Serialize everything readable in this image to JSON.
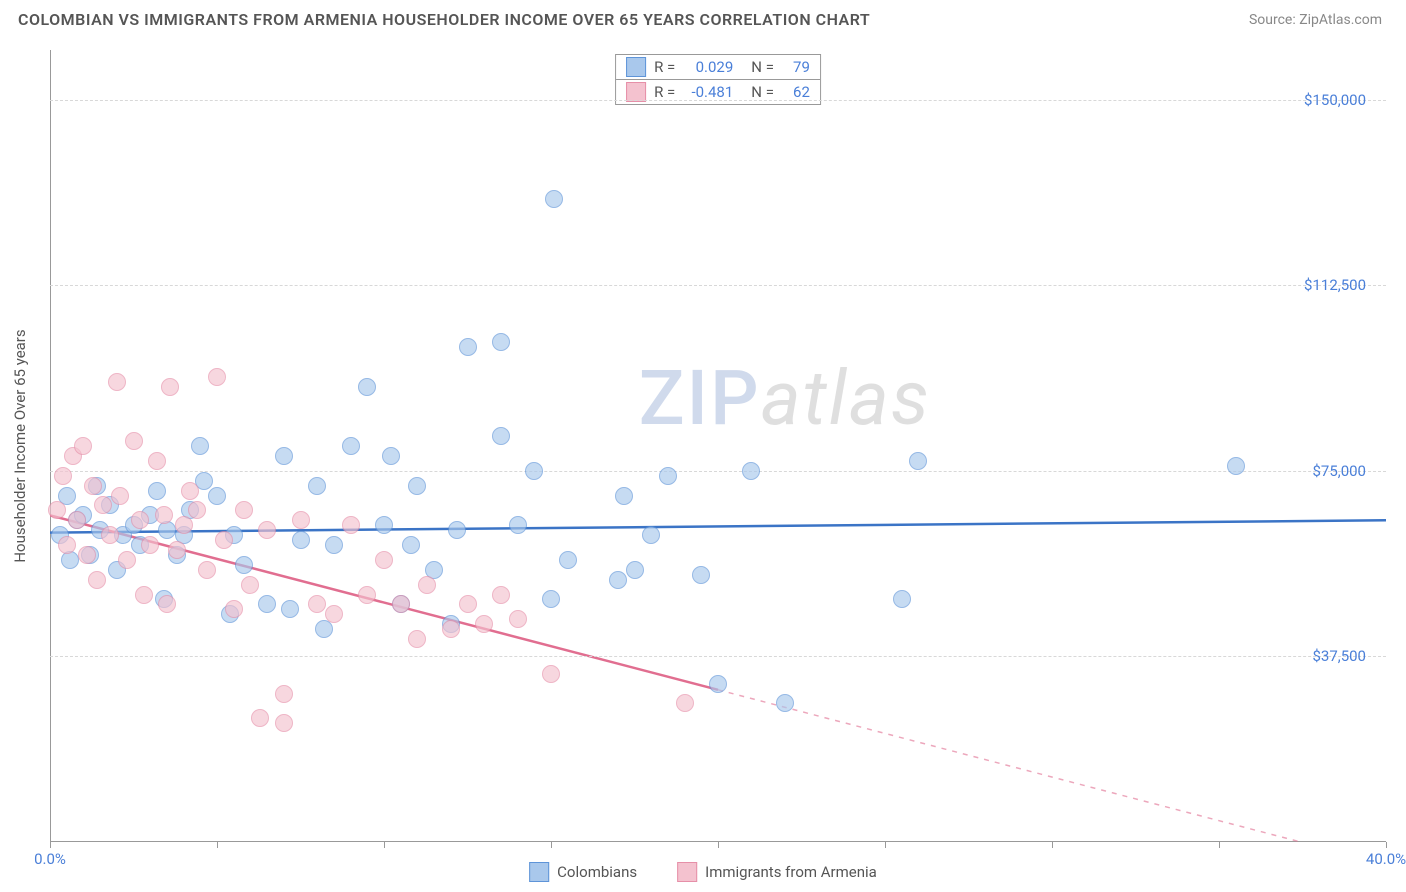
{
  "header": {
    "title": "COLOMBIAN VS IMMIGRANTS FROM ARMENIA HOUSEHOLDER INCOME OVER 65 YEARS CORRELATION CHART",
    "source": "Source: ZipAtlas.com"
  },
  "chart": {
    "type": "scatter",
    "y_label": "Householder Income Over 65 years",
    "background_color": "#ffffff",
    "grid_color": "#d8d8d8",
    "axis_color": "#999999",
    "text_color": "#555555",
    "value_color": "#4a7fd8",
    "xlim": [
      0,
      40
    ],
    "ylim": [
      0,
      160000
    ],
    "x_ticks": [
      0,
      5,
      10,
      15,
      20,
      25,
      30,
      35,
      40
    ],
    "x_tick_labels": {
      "0": "0.0%",
      "40": "40.0%"
    },
    "y_ticks": [
      37500,
      75000,
      112500,
      150000
    ],
    "y_tick_labels": {
      "37500": "$37,500",
      "75000": "$75,000",
      "112500": "$112,500",
      "150000": "$150,000"
    },
    "watermark": {
      "part1": "ZIP",
      "part2": "atlas"
    },
    "series": [
      {
        "name": "Colombians",
        "fill_color": "#a9c8ec",
        "stroke_color": "#5e94d8",
        "line_color": "#3b74c6",
        "line_width": 2.5,
        "R": "0.029",
        "N": "79",
        "trend": {
          "x1": 0,
          "y1": 62500,
          "x2": 40,
          "y2": 65000,
          "solid_to_x": 40
        },
        "points": [
          [
            0.3,
            62000
          ],
          [
            0.5,
            70000
          ],
          [
            0.6,
            57000
          ],
          [
            0.8,
            65000
          ],
          [
            1.0,
            66000
          ],
          [
            1.2,
            58000
          ],
          [
            1.4,
            72000
          ],
          [
            1.5,
            63000
          ],
          [
            1.8,
            68000
          ],
          [
            2.0,
            55000
          ],
          [
            2.2,
            62000
          ],
          [
            2.5,
            64000
          ],
          [
            2.7,
            60000
          ],
          [
            3.0,
            66000
          ],
          [
            3.2,
            71000
          ],
          [
            3.4,
            49000
          ],
          [
            3.5,
            63000
          ],
          [
            3.8,
            58000
          ],
          [
            4.0,
            62000
          ],
          [
            4.2,
            67000
          ],
          [
            4.5,
            80000
          ],
          [
            4.6,
            73000
          ],
          [
            5.0,
            70000
          ],
          [
            5.4,
            46000
          ],
          [
            5.5,
            62000
          ],
          [
            5.8,
            56000
          ],
          [
            6.5,
            48000
          ],
          [
            7.0,
            78000
          ],
          [
            7.2,
            47000
          ],
          [
            7.5,
            61000
          ],
          [
            8.0,
            72000
          ],
          [
            8.2,
            43000
          ],
          [
            8.5,
            60000
          ],
          [
            9.0,
            80000
          ],
          [
            9.5,
            92000
          ],
          [
            10.0,
            64000
          ],
          [
            10.2,
            78000
          ],
          [
            10.5,
            48000
          ],
          [
            10.8,
            60000
          ],
          [
            11.0,
            72000
          ],
          [
            11.5,
            55000
          ],
          [
            12.0,
            44000
          ],
          [
            12.2,
            63000
          ],
          [
            12.5,
            100000
          ],
          [
            13.5,
            82000
          ],
          [
            13.5,
            101000
          ],
          [
            14.0,
            64000
          ],
          [
            14.5,
            75000
          ],
          [
            15.1,
            130000
          ],
          [
            15.0,
            49000
          ],
          [
            15.5,
            57000
          ],
          [
            17.0,
            53000
          ],
          [
            17.2,
            70000
          ],
          [
            17.5,
            55000
          ],
          [
            18.0,
            62000
          ],
          [
            18.5,
            74000
          ],
          [
            19.5,
            54000
          ],
          [
            20.0,
            32000
          ],
          [
            21.0,
            75000
          ],
          [
            22.0,
            28000
          ],
          [
            25.5,
            49000
          ],
          [
            26.0,
            77000
          ],
          [
            35.5,
            76000
          ]
        ]
      },
      {
        "name": "Immigrants from Armenia",
        "fill_color": "#f4c2cf",
        "stroke_color": "#e68fa8",
        "line_color": "#e16e90",
        "line_width": 2.5,
        "R": "-0.481",
        "N": "62",
        "trend": {
          "x1": 0,
          "y1": 66000,
          "x2": 40,
          "y2": -4500,
          "solid_to_x": 20
        },
        "points": [
          [
            0.2,
            67000
          ],
          [
            0.4,
            74000
          ],
          [
            0.5,
            60000
          ],
          [
            0.7,
            78000
          ],
          [
            0.8,
            65000
          ],
          [
            1.0,
            80000
          ],
          [
            1.1,
            58000
          ],
          [
            1.3,
            72000
          ],
          [
            1.4,
            53000
          ],
          [
            1.6,
            68000
          ],
          [
            1.8,
            62000
          ],
          [
            2.0,
            93000
          ],
          [
            2.1,
            70000
          ],
          [
            2.3,
            57000
          ],
          [
            2.5,
            81000
          ],
          [
            2.7,
            65000
          ],
          [
            2.8,
            50000
          ],
          [
            3.0,
            60000
          ],
          [
            3.2,
            77000
          ],
          [
            3.4,
            66000
          ],
          [
            3.5,
            48000
          ],
          [
            3.6,
            92000
          ],
          [
            3.8,
            59000
          ],
          [
            4.0,
            64000
          ],
          [
            4.2,
            71000
          ],
          [
            4.4,
            67000
          ],
          [
            4.7,
            55000
          ],
          [
            5.0,
            94000
          ],
          [
            5.2,
            61000
          ],
          [
            5.5,
            47000
          ],
          [
            5.8,
            67000
          ],
          [
            6.0,
            52000
          ],
          [
            6.3,
            25000
          ],
          [
            6.5,
            63000
          ],
          [
            7.0,
            24000
          ],
          [
            7.0,
            30000
          ],
          [
            7.5,
            65000
          ],
          [
            8.0,
            48000
          ],
          [
            8.5,
            46000
          ],
          [
            9.0,
            64000
          ],
          [
            9.5,
            50000
          ],
          [
            10.0,
            57000
          ],
          [
            10.5,
            48000
          ],
          [
            11.0,
            41000
          ],
          [
            11.3,
            52000
          ],
          [
            12.0,
            43000
          ],
          [
            12.5,
            48000
          ],
          [
            13.0,
            44000
          ],
          [
            13.5,
            50000
          ],
          [
            14.0,
            45000
          ],
          [
            15.0,
            34000
          ],
          [
            19.0,
            28000
          ]
        ]
      }
    ],
    "bottom_legend": [
      {
        "label": "Colombians",
        "fill": "#a9c8ec",
        "stroke": "#5e94d8"
      },
      {
        "label": "Immigrants from Armenia",
        "fill": "#f4c2cf",
        "stroke": "#e68fa8"
      }
    ]
  }
}
